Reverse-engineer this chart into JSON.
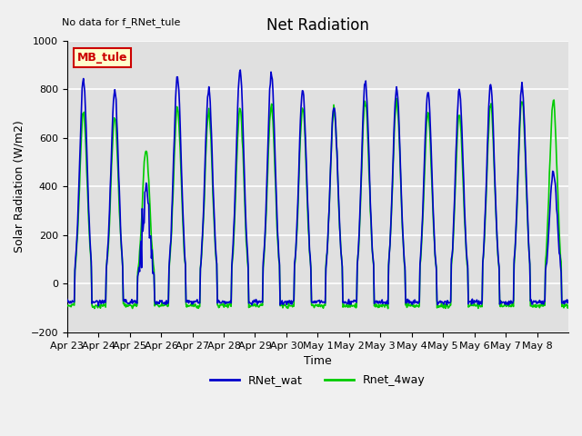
{
  "title": "Net Radiation",
  "xlabel": "Time",
  "ylabel": "Solar Radiation (W/m2)",
  "ylim": [
    -200,
    1000
  ],
  "yticks": [
    -200,
    0,
    200,
    400,
    600,
    800,
    1000
  ],
  "plot_bg_color": "#e0e0e0",
  "fig_bg_color": "#f0f0f0",
  "line_color_wat": "#0000cc",
  "line_color_4way": "#00cc00",
  "annotation_text": "No data for f_RNet_tule",
  "box_label": "MB_tule",
  "box_facecolor": "#ffffcc",
  "box_edgecolor": "#cc0000",
  "box_textcolor": "#cc0000",
  "tick_labels": [
    "Apr 23",
    "Apr 24",
    "Apr 25",
    "Apr 26",
    "Apr 27",
    "Apr 28",
    "Apr 29",
    "Apr 30",
    "May 1",
    "May 2",
    "May 3",
    "May 4",
    "May 5",
    "May 6",
    "May 7",
    "May 8"
  ],
  "num_days": 16,
  "night_value": -75,
  "day_peak_wat": [
    830,
    790,
    350,
    855,
    800,
    880,
    860,
    795,
    730,
    830,
    800,
    790,
    795,
    815,
    810,
    460
  ],
  "day_peak_4way": [
    700,
    680,
    550,
    720,
    705,
    730,
    730,
    720,
    720,
    750,
    750,
    700,
    700,
    740,
    755,
    750
  ],
  "legend_entries": [
    "RNet_wat",
    "Rnet_4way"
  ],
  "legend_colors": [
    "#0000cc",
    "#00cc00"
  ]
}
